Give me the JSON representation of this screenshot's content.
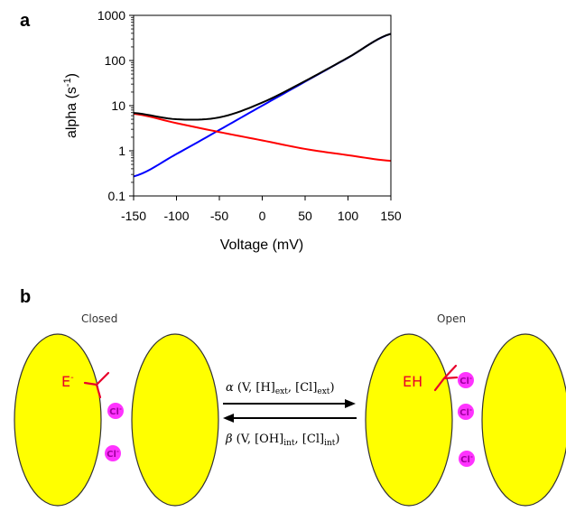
{
  "panel_a_label": "a",
  "panel_b_label": "b",
  "chart_data": {
    "type": "line",
    "title": "",
    "xlabel": "Voltage (mV)",
    "ylabel": "alpha (s-1)",
    "ylabel_main": "alpha (s",
    "ylabel_sup": "-1",
    "ylabel_end": ")",
    "xlim": [
      -150,
      150
    ],
    "ylim": [
      0.1,
      1000
    ],
    "yscale": "log",
    "grid": false,
    "x_ticks": [
      -150,
      -100,
      -50,
      0,
      50,
      100,
      150
    ],
    "x_tick_labels": [
      "-150",
      "-100",
      "-50",
      "0",
      "50",
      "100",
      "150"
    ],
    "y_ticks": [
      0.1,
      1,
      10,
      100,
      1000
    ],
    "y_tick_labels": [
      "0.1",
      "1",
      "10",
      "100",
      "1000"
    ],
    "x": [
      -150,
      -100,
      -50,
      0,
      50,
      100,
      150
    ],
    "series": [
      {
        "color": "#0000ff",
        "values": [
          0.27,
          0.85,
          2.9,
          10,
          34,
          115,
          390
        ]
      },
      {
        "color": "#ff0000",
        "values": [
          6.6,
          4.1,
          2.6,
          1.7,
          1.1,
          0.8,
          0.6
        ]
      },
      {
        "color": "#000000",
        "values": [
          6.9,
          5.0,
          5.5,
          11.7,
          35.1,
          115.8,
          390.6
        ]
      }
    ]
  },
  "diagram": {
    "closed_label": "Closed",
    "open_label": "Open",
    "ion_label": "Cl",
    "ion_sup": "-",
    "closed_group": "E",
    "closed_group_sup": "-",
    "open_group": "EH",
    "forward_symbol": "α",
    "forward_args_1": " (V, [H]",
    "forward_sub_1": "ext",
    "forward_args_2": ", [Cl]",
    "forward_sub_2": "ext",
    "forward_args_3": ")",
    "backward_symbol": "β",
    "backward_args_1": " (V, [OH]",
    "backward_sub_1": "int",
    "backward_args_2": ", [Cl]",
    "backward_sub_2": "int",
    "backward_args_3": ")",
    "ellipse_color": "#ffff00",
    "ion_color": "#ff33ff",
    "group_color": "#e8002a"
  }
}
